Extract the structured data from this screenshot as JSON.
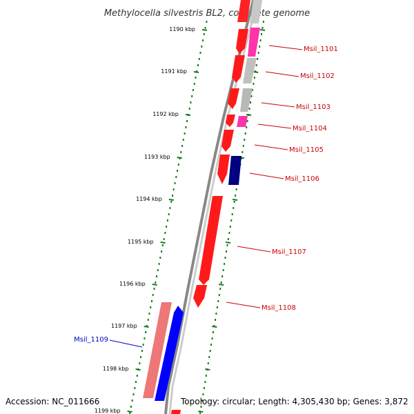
{
  "title": "Methylocella silvestris BL2, complete genome",
  "footer": {
    "accession": "Accession: NC_011666",
    "topology": "Topology: circular; Length: 4,305,430 bp; Genes: 3,872"
  },
  "ticks": [
    "1190 kbp",
    "1191 kbp",
    "1192 kbp",
    "1193 kbp",
    "1194 kbp",
    "1195 kbp",
    "1196 kbp",
    "1197 kbp",
    "1198 kbp",
    "1199 kbp"
  ],
  "gene_labels": [
    "Msil_1101",
    "Msil_1102",
    "Msil_1103",
    "Msil_1104",
    "Msil_1105",
    "Msil_1106",
    "Msil_1107",
    "Msil_1108",
    "Msil_1109"
  ],
  "colors": {
    "cds_red": "#ff1a1a",
    "cds_pink": "#ff33aa",
    "cds_grey": "#bbbbbb",
    "cds_navy": "#000080",
    "cds_blue": "#0000ff",
    "cds_salmon": "#ee7777",
    "label_red": "#cc0000",
    "label_blue": "#0000cc",
    "tick_green": "#1a7a1a",
    "backbone": "#888888"
  }
}
